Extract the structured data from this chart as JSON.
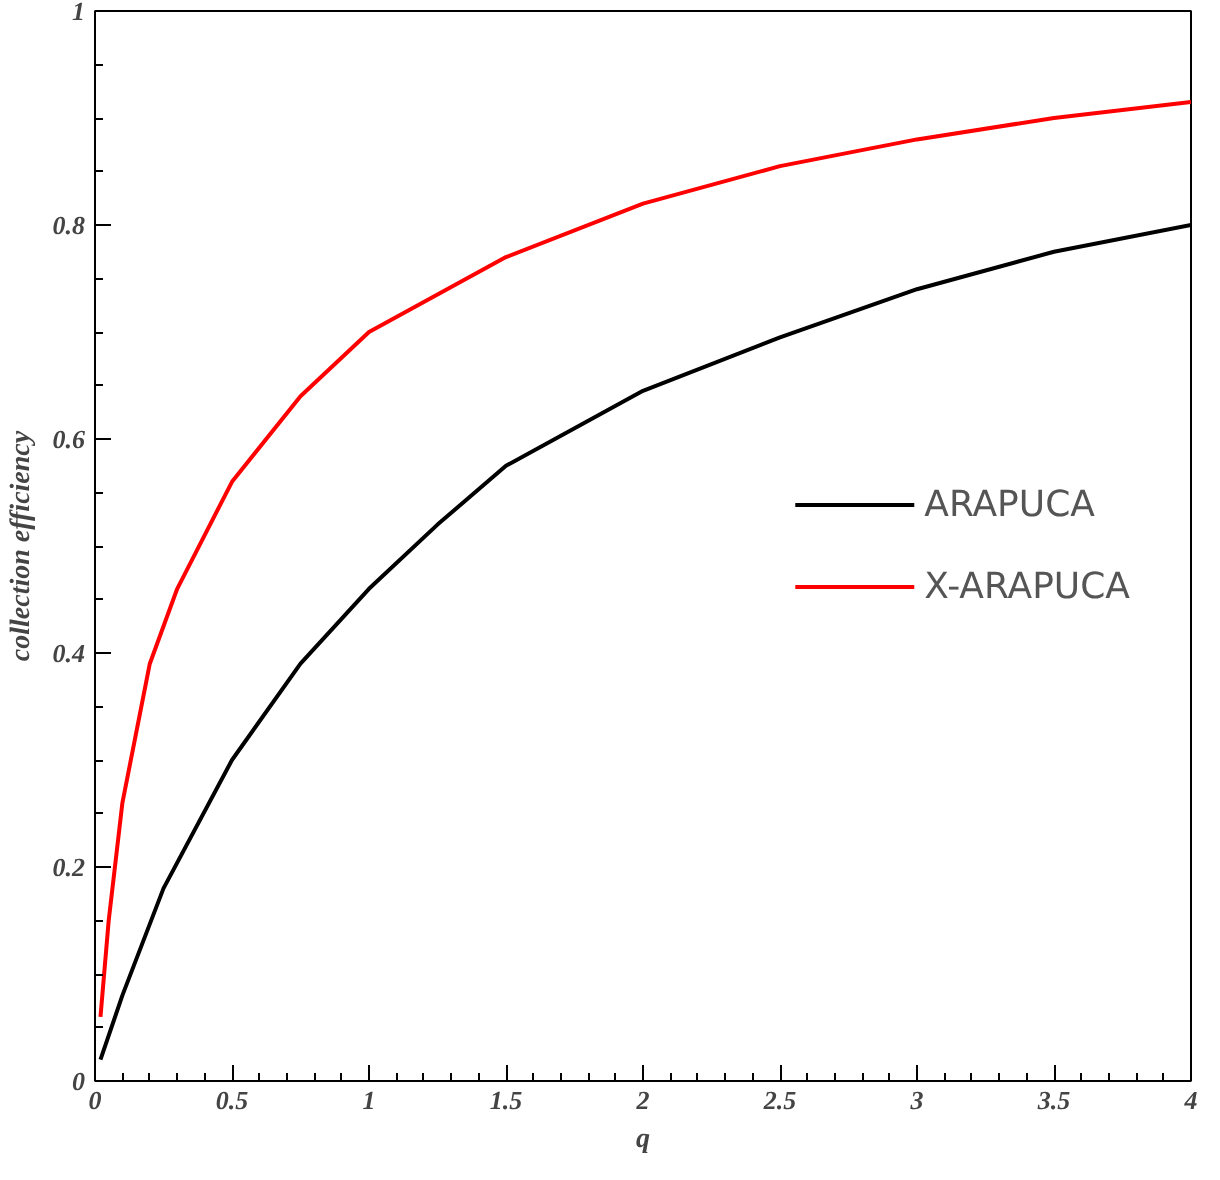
{
  "chart_data": {
    "type": "line",
    "xlabel": "q",
    "ylabel": "collection efficiency",
    "xlim": [
      0,
      4
    ],
    "ylim": [
      0,
      1
    ],
    "xticks": [
      0,
      0.5,
      1,
      1.5,
      2,
      2.5,
      3,
      3.5,
      4
    ],
    "yticks": [
      0,
      0.2,
      0.4,
      0.6,
      0.8,
      1
    ],
    "grid": false,
    "legend": "right",
    "marker": "none",
    "line_style": "solid",
    "series": [
      {
        "name": "ARAPUCA",
        "color": "#000000",
        "x": [
          0.02,
          0.1,
          0.25,
          0.5,
          0.75,
          1,
          1.25,
          1.5,
          2,
          2.5,
          3,
          3.5,
          4
        ],
        "values": [
          0.02,
          0.08,
          0.18,
          0.3,
          0.39,
          0.46,
          0.52,
          0.575,
          0.645,
          0.695,
          0.74,
          0.775,
          0.8
        ]
      },
      {
        "name": "X-ARAPUCA",
        "color": "#ff0000",
        "x": [
          0.02,
          0.05,
          0.1,
          0.2,
          0.3,
          0.5,
          0.75,
          1,
          1.5,
          2,
          2.5,
          3,
          3.5,
          4
        ],
        "values": [
          0.06,
          0.15,
          0.26,
          0.39,
          0.46,
          0.56,
          0.64,
          0.7,
          0.77,
          0.82,
          0.855,
          0.88,
          0.9,
          0.915
        ]
      }
    ]
  }
}
